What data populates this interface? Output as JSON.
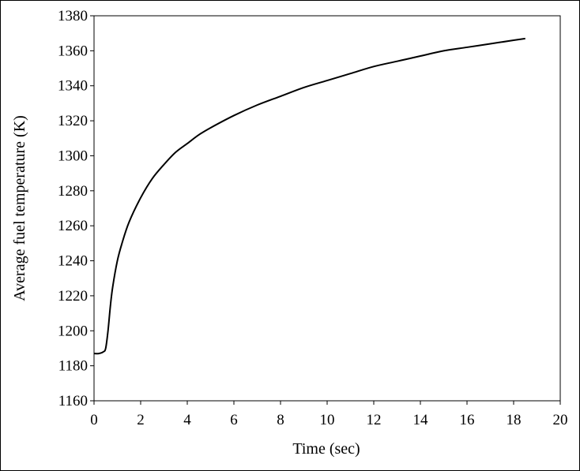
{
  "chart_data": {
    "type": "line",
    "xlabel": "Time (sec)",
    "ylabel": "Average fuel temperature (K)",
    "xlim": [
      0,
      20
    ],
    "ylim": [
      1160,
      1380
    ],
    "x_ticks": [
      0,
      2,
      4,
      6,
      8,
      10,
      12,
      14,
      16,
      18,
      20
    ],
    "y_ticks": [
      1160,
      1180,
      1200,
      1220,
      1240,
      1260,
      1280,
      1300,
      1320,
      1340,
      1360,
      1380
    ],
    "grid": false,
    "legend": "none",
    "series": [
      {
        "color": "#000000",
        "x": [
          0,
          0.2,
          0.4,
          0.5,
          0.6,
          0.7,
          0.8,
          1.0,
          1.2,
          1.5,
          2.0,
          2.5,
          3.0,
          3.5,
          4.0,
          4.5,
          5.0,
          6.0,
          7.0,
          8.0,
          9.0,
          10.0,
          11.0,
          12.0,
          13.0,
          14.0,
          15.0,
          16.0,
          17.0,
          18.0,
          18.5
        ],
        "y": [
          1187,
          1187,
          1188,
          1190,
          1200,
          1214,
          1225,
          1240,
          1250,
          1262,
          1276,
          1287,
          1295,
          1302,
          1307,
          1312,
          1316,
          1323,
          1329,
          1334,
          1339,
          1343,
          1347,
          1351,
          1354,
          1357,
          1360,
          1362,
          1364,
          1366,
          1367
        ]
      }
    ]
  }
}
